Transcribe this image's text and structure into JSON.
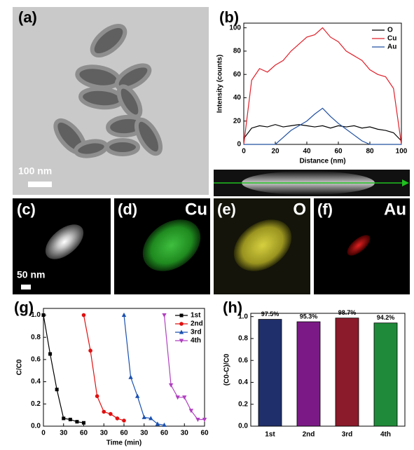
{
  "chart_data": [
    {
      "type": "line",
      "label": "(b)",
      "xlabel": "Distance (nm)",
      "ylabel": "Intensity (counts)",
      "x": [
        0,
        5,
        10,
        15,
        20,
        25,
        30,
        35,
        40,
        45,
        50,
        55,
        60,
        65,
        70,
        75,
        80,
        85,
        90,
        95,
        100
      ],
      "series": [
        {
          "name": "O",
          "color": "#000000",
          "values": [
            5,
            14,
            16,
            15,
            17,
            15,
            16,
            17,
            16,
            15,
            16,
            14,
            16,
            15,
            16,
            14,
            15,
            13,
            12,
            10,
            3
          ]
        },
        {
          "name": "Cu",
          "color": "#e0202a",
          "values": [
            0,
            55,
            65,
            62,
            68,
            72,
            80,
            86,
            92,
            94,
            100,
            92,
            88,
            80,
            76,
            72,
            64,
            60,
            58,
            48,
            0
          ]
        },
        {
          "name": "Au",
          "color": "#2050a0",
          "values": [
            0,
            0,
            0,
            0,
            0,
            6,
            12,
            16,
            20,
            26,
            31,
            24,
            18,
            13,
            8,
            3,
            0,
            0,
            0,
            0,
            0
          ]
        }
      ],
      "xlim": [
        0,
        100
      ],
      "xticks": [
        0,
        20,
        40,
        60,
        80,
        100
      ],
      "ylim": [
        0,
        104
      ],
      "yticks": [
        0,
        20,
        40,
        60,
        80,
        100
      ],
      "legend": "upper right"
    },
    {
      "type": "line",
      "label": "(g)",
      "xlabel": "Time (min)",
      "ylabel": "C/C0",
      "series": [
        {
          "name": "1st",
          "color": "#000000",
          "marker": "square",
          "x": [
            0,
            10,
            20,
            30,
            40,
            50,
            60
          ],
          "values": [
            1.0,
            0.65,
            0.33,
            0.07,
            0.06,
            0.04,
            0.03
          ]
        },
        {
          "name": "2nd",
          "color": "#e01010",
          "marker": "circle",
          "x": [
            60,
            70,
            80,
            90,
            100,
            110,
            120
          ],
          "values": [
            1.0,
            0.68,
            0.27,
            0.13,
            0.11,
            0.07,
            0.05
          ]
        },
        {
          "name": "3rd",
          "color": "#1a50b0",
          "marker": "triangle-up",
          "x": [
            120,
            130,
            140,
            150,
            160,
            170,
            180
          ],
          "values": [
            1.0,
            0.44,
            0.27,
            0.08,
            0.07,
            0.02,
            0.01
          ]
        },
        {
          "name": "4th",
          "color": "#b040c0",
          "marker": "triangle-down",
          "x": [
            180,
            190,
            200,
            210,
            220,
            230,
            240
          ],
          "values": [
            1.0,
            0.37,
            0.26,
            0.26,
            0.14,
            0.06,
            0.06
          ]
        }
      ],
      "xlim": [
        0,
        240
      ],
      "xticks": [
        0,
        30,
        60,
        {
          "value": 90,
          "label": "30"
        },
        {
          "value": 120,
          "label": "60"
        },
        {
          "value": 150,
          "label": "30"
        },
        {
          "value": 180,
          "label": "60"
        },
        {
          "value": 210,
          "label": "30"
        },
        {
          "value": 240,
          "label": "60"
        }
      ],
      "ylim": [
        0,
        1.06
      ],
      "yticks": [
        {
          "value": 0,
          "label": "0.0"
        },
        0.2,
        0.4,
        0.6,
        0.8,
        {
          "value": 1,
          "label": "1.0"
        }
      ],
      "legend": "upper right"
    },
    {
      "type": "bar",
      "label": "(h)",
      "ylabel": "(C0-C)/C0",
      "categories": [
        "1st",
        "2nd",
        "3rd",
        "4th"
      ],
      "values": [
        0.975,
        0.953,
        0.987,
        0.942
      ],
      "value_labels": [
        "97.5%",
        "95.3%",
        "98.7%",
        "94.2%"
      ],
      "colors": [
        "#1f2f6b",
        "#7b1a86",
        "#8b1a2a",
        "#1f8a3a"
      ],
      "ylim": [
        0,
        1.03
      ],
      "yticks": [
        {
          "value": 0,
          "label": "0.0"
        },
        0.2,
        0.4,
        0.6,
        0.8,
        {
          "value": 1,
          "label": "1.0"
        }
      ]
    }
  ],
  "images": {
    "a": {
      "label": "(a)",
      "scale_bar": "100 nm"
    },
    "c": {
      "label": "(c)",
      "scale_bar": "50 nm"
    },
    "d": {
      "label": "(d)",
      "element": "Cu"
    },
    "e": {
      "label": "(e)",
      "element": "O"
    },
    "f": {
      "label": "(f)",
      "element": "Au"
    }
  }
}
